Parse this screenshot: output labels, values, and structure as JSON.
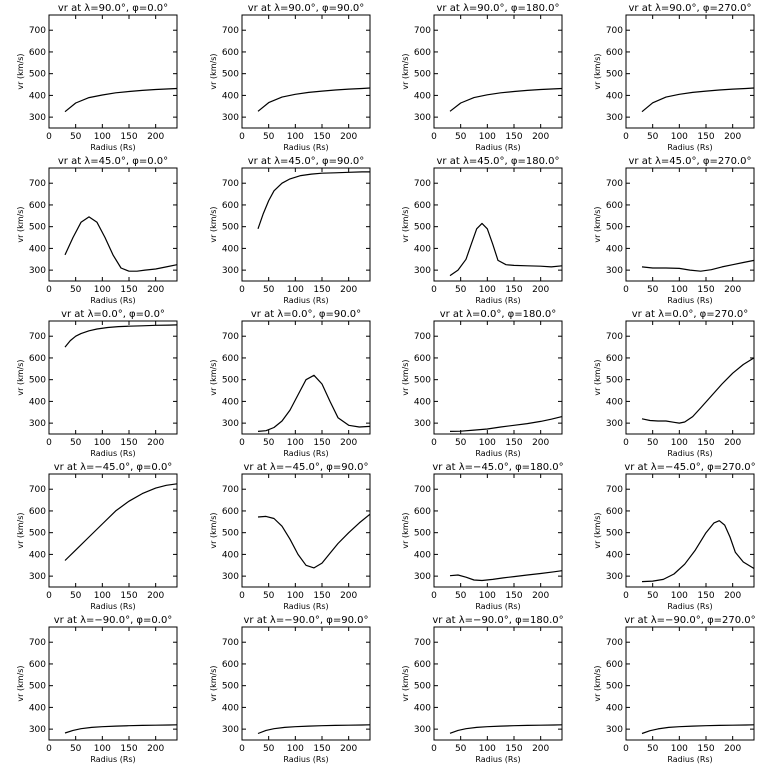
{
  "chart_data": [
    {
      "type": "line",
      "title": "vr at λ=90.0°, φ=0.0°",
      "xlabel": "Radius (Rs)",
      "ylabel": "vr (km/s)",
      "xlim": [
        0,
        240
      ],
      "ylim": [
        250,
        770
      ],
      "xticks": [
        0,
        50,
        100,
        150,
        200
      ],
      "yticks": [
        300,
        400,
        500,
        600,
        700
      ],
      "x": [
        30,
        50,
        75,
        100,
        125,
        150,
        175,
        200,
        225,
        240
      ],
      "y": [
        325,
        365,
        390,
        402,
        412,
        418,
        423,
        427,
        430,
        432
      ]
    },
    {
      "type": "line",
      "title": "vr at λ=90.0°, φ=90.0°",
      "xlabel": "Radius (Rs)",
      "ylabel": "vr (km/s)",
      "xlim": [
        0,
        240
      ],
      "ylim": [
        250,
        770
      ],
      "xticks": [
        0,
        50,
        100,
        150,
        200
      ],
      "yticks": [
        300,
        400,
        500,
        600,
        700
      ],
      "x": [
        30,
        50,
        75,
        100,
        125,
        150,
        175,
        200,
        225,
        240
      ],
      "y": [
        327,
        367,
        392,
        405,
        414,
        420,
        425,
        429,
        432,
        434
      ]
    },
    {
      "type": "line",
      "title": "vr at λ=90.0°, φ=180.0°",
      "xlabel": "Radius (Rs)",
      "ylabel": "vr (km/s)",
      "xlim": [
        0,
        240
      ],
      "ylim": [
        250,
        770
      ],
      "xticks": [
        0,
        50,
        100,
        150,
        200
      ],
      "yticks": [
        300,
        400,
        500,
        600,
        700
      ],
      "x": [
        30,
        50,
        75,
        100,
        125,
        150,
        175,
        200,
        225,
        240
      ],
      "y": [
        327,
        365,
        390,
        403,
        412,
        418,
        423,
        427,
        430,
        432
      ]
    },
    {
      "type": "line",
      "title": "vr at λ=90.0°, φ=270.0°",
      "xlabel": "Radius (Rs)",
      "ylabel": "vr (km/s)",
      "xlim": [
        0,
        240
      ],
      "ylim": [
        250,
        770
      ],
      "xticks": [
        0,
        50,
        100,
        150,
        200
      ],
      "yticks": [
        300,
        400,
        500,
        600,
        700
      ],
      "x": [
        30,
        50,
        75,
        100,
        125,
        150,
        175,
        200,
        225,
        240
      ],
      "y": [
        325,
        366,
        392,
        405,
        414,
        420,
        425,
        429,
        432,
        434
      ]
    },
    {
      "type": "line",
      "title": "vr at λ=45.0°, φ=0.0°",
      "xlabel": "Radius (Rs)",
      "ylabel": "vr (km/s)",
      "xlim": [
        0,
        240
      ],
      "ylim": [
        250,
        770
      ],
      "xticks": [
        0,
        50,
        100,
        150,
        200
      ],
      "yticks": [
        300,
        400,
        500,
        600,
        700
      ],
      "x": [
        30,
        45,
        60,
        75,
        90,
        105,
        120,
        135,
        150,
        165,
        180,
        200,
        220,
        240
      ],
      "y": [
        370,
        450,
        520,
        545,
        520,
        450,
        370,
        310,
        295,
        295,
        300,
        305,
        315,
        325
      ]
    },
    {
      "type": "line",
      "title": "vr at λ=45.0°, φ=90.0°",
      "xlabel": "Radius (Rs)",
      "ylabel": "vr (km/s)",
      "xlim": [
        0,
        240
      ],
      "ylim": [
        250,
        770
      ],
      "xticks": [
        0,
        50,
        100,
        150,
        200
      ],
      "yticks": [
        300,
        400,
        500,
        600,
        700
      ],
      "x": [
        30,
        40,
        50,
        60,
        75,
        90,
        110,
        130,
        150,
        175,
        200,
        225,
        240
      ],
      "y": [
        490,
        560,
        620,
        665,
        700,
        720,
        735,
        742,
        746,
        748,
        750,
        752,
        752
      ]
    },
    {
      "type": "line",
      "title": "vr at λ=45.0°, φ=180.0°",
      "xlabel": "Radius (Rs)",
      "ylabel": "vr (km/s)",
      "xlim": [
        0,
        240
      ],
      "ylim": [
        250,
        770
      ],
      "xticks": [
        0,
        50,
        100,
        150,
        200
      ],
      "yticks": [
        300,
        400,
        500,
        600,
        700
      ],
      "x": [
        30,
        45,
        60,
        70,
        80,
        90,
        100,
        110,
        120,
        135,
        150,
        175,
        200,
        220,
        240
      ],
      "y": [
        275,
        300,
        350,
        420,
        490,
        515,
        490,
        420,
        345,
        325,
        322,
        320,
        318,
        315,
        320
      ]
    },
    {
      "type": "line",
      "title": "vr at λ=45.0°, φ=270.0°",
      "xlabel": "Radius (Rs)",
      "ylabel": "vr (km/s)",
      "xlim": [
        0,
        240
      ],
      "ylim": [
        250,
        770
      ],
      "xticks": [
        0,
        50,
        100,
        150,
        200
      ],
      "yticks": [
        300,
        400,
        500,
        600,
        700
      ],
      "x": [
        30,
        50,
        75,
        100,
        120,
        140,
        160,
        180,
        200,
        220,
        240
      ],
      "y": [
        315,
        310,
        310,
        308,
        300,
        295,
        302,
        315,
        325,
        335,
        345
      ]
    },
    {
      "type": "line",
      "title": "vr at λ=0.0°, φ=0.0°",
      "xlabel": "Radius (Rs)",
      "ylabel": "vr (km/s)",
      "xlim": [
        0,
        240
      ],
      "ylim": [
        250,
        770
      ],
      "xticks": [
        0,
        50,
        100,
        150,
        200
      ],
      "yticks": [
        300,
        400,
        500,
        600,
        700
      ],
      "x": [
        30,
        40,
        50,
        60,
        75,
        90,
        110,
        130,
        150,
        175,
        200,
        225,
        240
      ],
      "y": [
        650,
        680,
        700,
        712,
        725,
        733,
        740,
        744,
        746,
        748,
        750,
        751,
        752
      ]
    },
    {
      "type": "line",
      "title": "vr at λ=0.0°, φ=90.0°",
      "xlabel": "Radius (Rs)",
      "ylabel": "vr (km/s)",
      "xlim": [
        0,
        240
      ],
      "ylim": [
        250,
        770
      ],
      "xticks": [
        0,
        50,
        100,
        150,
        200
      ],
      "yticks": [
        300,
        400,
        500,
        600,
        700
      ],
      "x": [
        30,
        45,
        60,
        75,
        90,
        105,
        120,
        135,
        150,
        165,
        180,
        200,
        220,
        240
      ],
      "y": [
        262,
        265,
        280,
        310,
        360,
        430,
        500,
        520,
        480,
        400,
        325,
        290,
        282,
        285
      ]
    },
    {
      "type": "line",
      "title": "vr at λ=0.0°, φ=180.0°",
      "xlabel": "Radius (Rs)",
      "ylabel": "vr (km/s)",
      "xlim": [
        0,
        240
      ],
      "ylim": [
        250,
        770
      ],
      "xticks": [
        0,
        50,
        100,
        150,
        200
      ],
      "yticks": [
        300,
        400,
        500,
        600,
        700
      ],
      "x": [
        30,
        50,
        75,
        100,
        125,
        150,
        175,
        200,
        220,
        240
      ],
      "y": [
        262,
        263,
        268,
        273,
        282,
        290,
        298,
        308,
        318,
        330
      ]
    },
    {
      "type": "line",
      "title": "vr at λ=0.0°, φ=270.0°",
      "xlabel": "Radius (Rs)",
      "ylabel": "vr (km/s)",
      "xlim": [
        0,
        240
      ],
      "ylim": [
        250,
        770
      ],
      "xticks": [
        0,
        50,
        100,
        150,
        200
      ],
      "yticks": [
        300,
        400,
        500,
        600,
        700
      ],
      "x": [
        30,
        45,
        60,
        75,
        90,
        100,
        110,
        125,
        140,
        160,
        180,
        200,
        220,
        240
      ],
      "y": [
        320,
        312,
        310,
        310,
        304,
        300,
        305,
        330,
        370,
        425,
        480,
        530,
        570,
        600
      ]
    },
    {
      "type": "line",
      "title": "vr at λ=−45.0°, φ=0.0°",
      "xlabel": "Radius (Rs)",
      "ylabel": "vr (km/s)",
      "xlim": [
        0,
        240
      ],
      "ylim": [
        250,
        770
      ],
      "xticks": [
        0,
        50,
        100,
        150,
        200
      ],
      "yticks": [
        300,
        400,
        500,
        600,
        700
      ],
      "x": [
        30,
        50,
        75,
        100,
        125,
        150,
        175,
        200,
        220,
        240
      ],
      "y": [
        372,
        420,
        480,
        540,
        600,
        645,
        680,
        705,
        718,
        725
      ]
    },
    {
      "type": "line",
      "title": "vr at λ=−45.0°, φ=90.0°",
      "xlabel": "Radius (Rs)",
      "ylabel": "vr (km/s)",
      "xlim": [
        0,
        240
      ],
      "ylim": [
        250,
        770
      ],
      "xticks": [
        0,
        50,
        100,
        150,
        200
      ],
      "yticks": [
        300,
        400,
        500,
        600,
        700
      ],
      "x": [
        30,
        45,
        60,
        75,
        90,
        105,
        120,
        135,
        150,
        165,
        180,
        200,
        220,
        240
      ],
      "y": [
        572,
        575,
        565,
        530,
        470,
        400,
        350,
        338,
        360,
        405,
        450,
        500,
        545,
        585
      ]
    },
    {
      "type": "line",
      "title": "vr at λ=−45.0°, φ=180.0°",
      "xlabel": "Radius (Rs)",
      "ylabel": "vr (km/s)",
      "xlim": [
        0,
        240
      ],
      "ylim": [
        250,
        770
      ],
      "xticks": [
        0,
        50,
        100,
        150,
        200
      ],
      "yticks": [
        300,
        400,
        500,
        600,
        700
      ],
      "x": [
        30,
        45,
        60,
        75,
        90,
        110,
        130,
        150,
        175,
        200,
        225,
        240
      ],
      "y": [
        302,
        305,
        295,
        282,
        280,
        285,
        292,
        298,
        305,
        312,
        320,
        325
      ]
    },
    {
      "type": "line",
      "title": "vr at λ=−45.0°, φ=270.0°",
      "xlabel": "Radius (Rs)",
      "ylabel": "vr (km/s)",
      "xlim": [
        0,
        240
      ],
      "ylim": [
        250,
        770
      ],
      "xticks": [
        0,
        50,
        100,
        150,
        200
      ],
      "yticks": [
        300,
        400,
        500,
        600,
        700
      ],
      "x": [
        30,
        50,
        70,
        90,
        110,
        130,
        150,
        165,
        175,
        185,
        195,
        205,
        220,
        240
      ],
      "y": [
        275,
        277,
        285,
        310,
        355,
        420,
        500,
        545,
        555,
        535,
        480,
        410,
        365,
        335
      ]
    },
    {
      "type": "line",
      "title": "vr at λ=−90.0°, φ=0.0°",
      "xlabel": "Radius (Rs)",
      "ylabel": "vr (km/s)",
      "xlim": [
        0,
        240
      ],
      "ylim": [
        250,
        770
      ],
      "xticks": [
        0,
        50,
        100,
        150,
        200
      ],
      "yticks": [
        300,
        400,
        500,
        600,
        700
      ],
      "x": [
        30,
        45,
        60,
        80,
        100,
        125,
        150,
        175,
        200,
        225,
        240
      ],
      "y": [
        282,
        294,
        302,
        308,
        311,
        314,
        316,
        317,
        318,
        319,
        320
      ]
    },
    {
      "type": "line",
      "title": "vr at λ=−90.0°, φ=90.0°",
      "xlabel": "Radius (Rs)",
      "ylabel": "vr (km/s)",
      "xlim": [
        0,
        240
      ],
      "ylim": [
        250,
        770
      ],
      "xticks": [
        0,
        50,
        100,
        150,
        200
      ],
      "yticks": [
        300,
        400,
        500,
        600,
        700
      ],
      "x": [
        30,
        45,
        60,
        80,
        100,
        125,
        150,
        175,
        200,
        225,
        240
      ],
      "y": [
        280,
        294,
        302,
        308,
        311,
        314,
        316,
        317,
        318,
        319,
        320
      ]
    },
    {
      "type": "line",
      "title": "vr at λ=−90.0°, φ=180.0°",
      "xlabel": "Radius (Rs)",
      "ylabel": "vr (km/s)",
      "xlim": [
        0,
        240
      ],
      "ylim": [
        250,
        770
      ],
      "xticks": [
        0,
        50,
        100,
        150,
        200
      ],
      "yticks": [
        300,
        400,
        500,
        600,
        700
      ],
      "x": [
        30,
        45,
        60,
        80,
        100,
        125,
        150,
        175,
        200,
        225,
        240
      ],
      "y": [
        281,
        294,
        302,
        308,
        311,
        314,
        316,
        317,
        318,
        319,
        320
      ]
    },
    {
      "type": "line",
      "title": "vr at λ=−90.0°, φ=270.0°",
      "xlabel": "Radius (Rs)",
      "ylabel": "vr (km/s)",
      "xlim": [
        0,
        240
      ],
      "ylim": [
        250,
        770
      ],
      "xticks": [
        0,
        50,
        100,
        150,
        200
      ],
      "yticks": [
        300,
        400,
        500,
        600,
        700
      ],
      "x": [
        30,
        45,
        60,
        80,
        100,
        125,
        150,
        175,
        200,
        225,
        240
      ],
      "y": [
        280,
        293,
        301,
        308,
        311,
        314,
        316,
        317,
        318,
        319,
        320
      ]
    }
  ]
}
